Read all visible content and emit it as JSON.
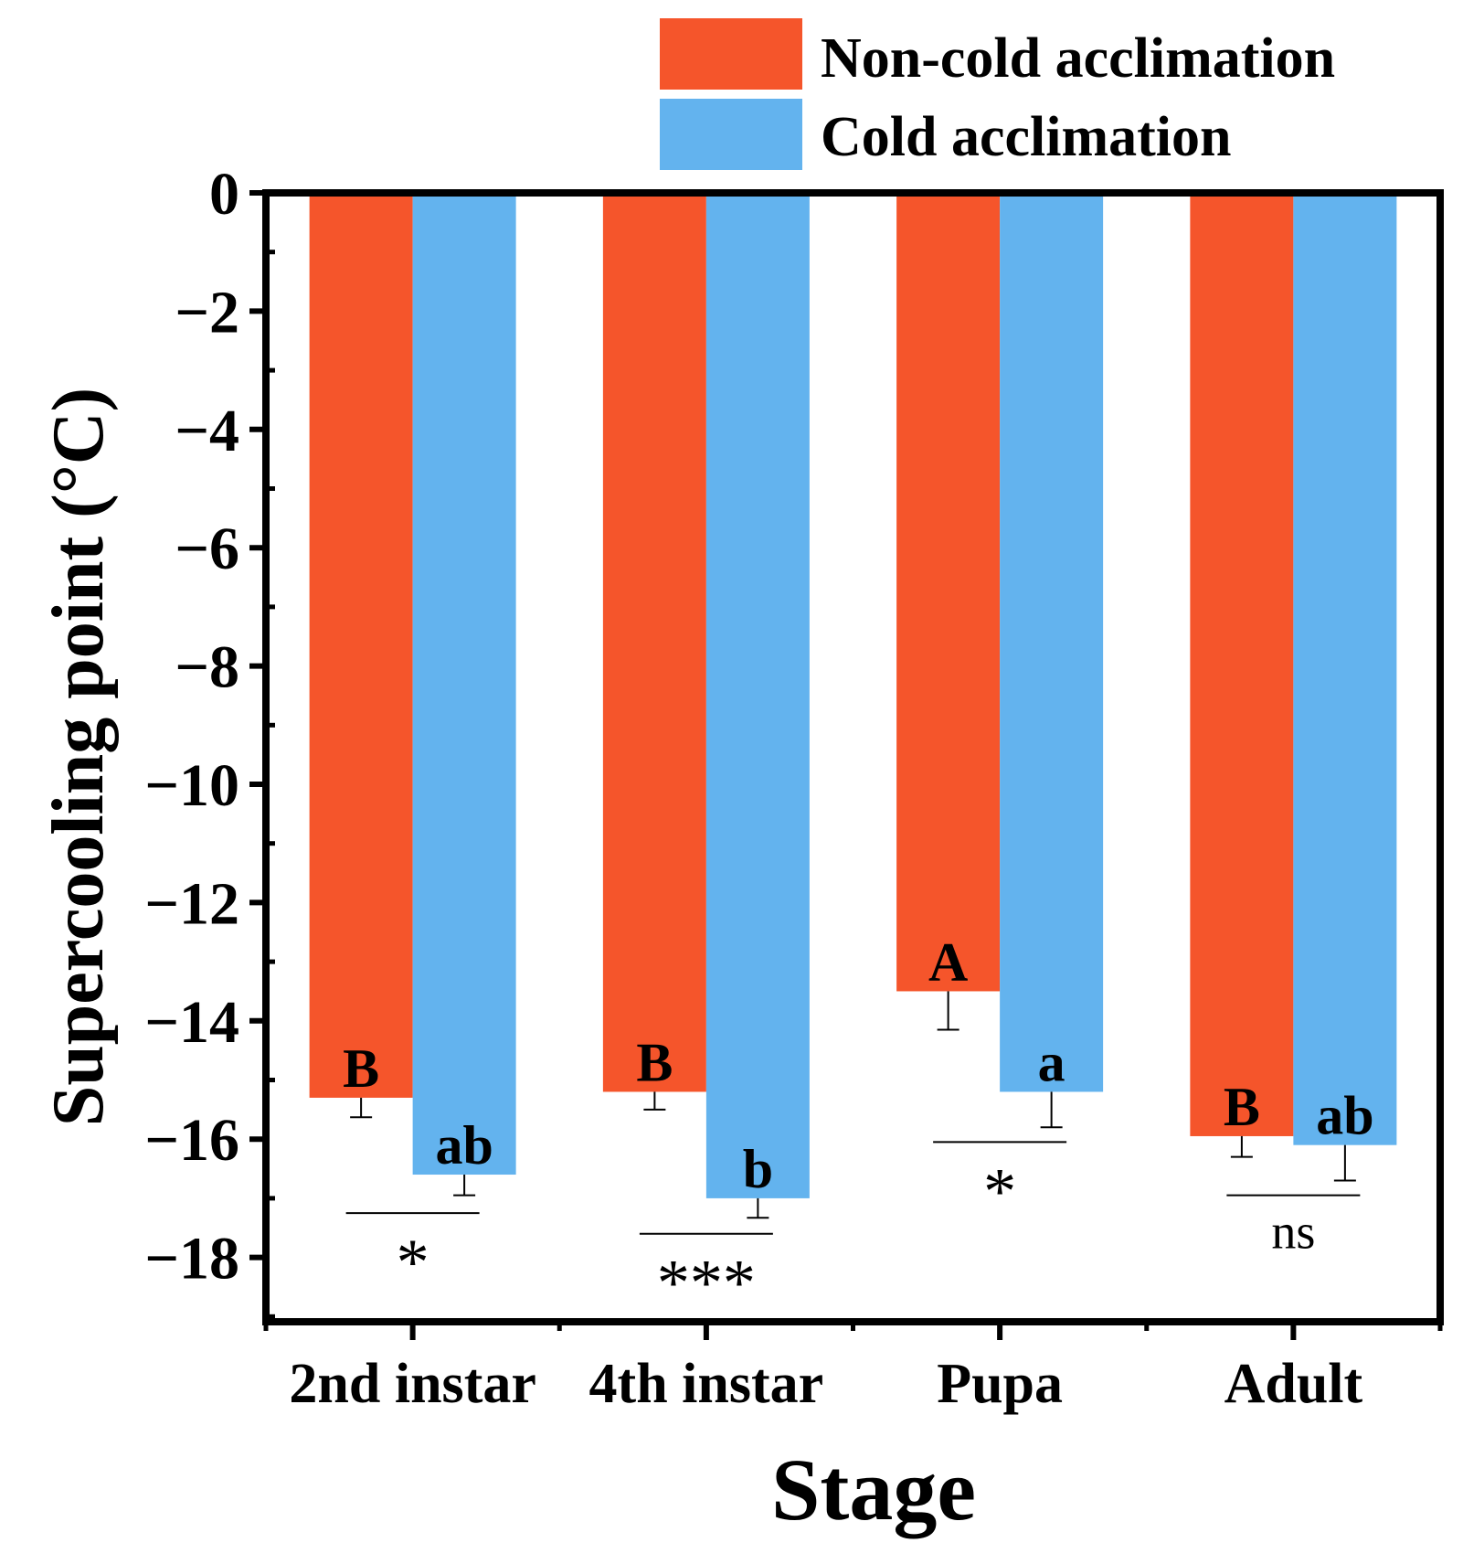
{
  "chart_data": {
    "type": "bar",
    "title": "",
    "xlabel": "Stage",
    "ylabel": "Supercooling point (°C)",
    "categories": [
      "2nd instar",
      "4th instar",
      "Pupa",
      "Adult"
    ],
    "ylim": [
      -19,
      0
    ],
    "yticks": [
      0,
      -2,
      -4,
      -6,
      -8,
      -10,
      -12,
      -14,
      -16,
      -18
    ],
    "ytick_labels": [
      "0",
      "−2",
      "−4",
      "−6",
      "−8",
      "−10",
      "−12",
      "−14",
      "−16",
      "−18"
    ],
    "legend_position": "top-right",
    "series": [
      {
        "name": "Non-cold acclimation",
        "color": "#F5552B",
        "values": [
          -15.3,
          -15.2,
          -13.5,
          -15.95
        ],
        "errors": [
          0.33,
          0.3,
          0.65,
          0.35
        ],
        "letters": [
          "B",
          "B",
          "A",
          "B"
        ]
      },
      {
        "name": "Cold acclimation",
        "color": "#63B3EE",
        "values": [
          -16.6,
          -17.0,
          -15.2,
          -16.1
        ],
        "errors": [
          0.35,
          0.33,
          0.6,
          0.6
        ],
        "letters": [
          "ab",
          "b",
          "a",
          "ab"
        ]
      }
    ],
    "significance": [
      {
        "category": "2nd instar",
        "label": "*",
        "y": -17.25
      },
      {
        "category": "4th instar",
        "label": "***",
        "y": -17.6
      },
      {
        "category": "Pupa",
        "label": "*",
        "y": -16.05
      },
      {
        "category": "Adult",
        "label": "ns",
        "y": -16.95
      }
    ]
  }
}
